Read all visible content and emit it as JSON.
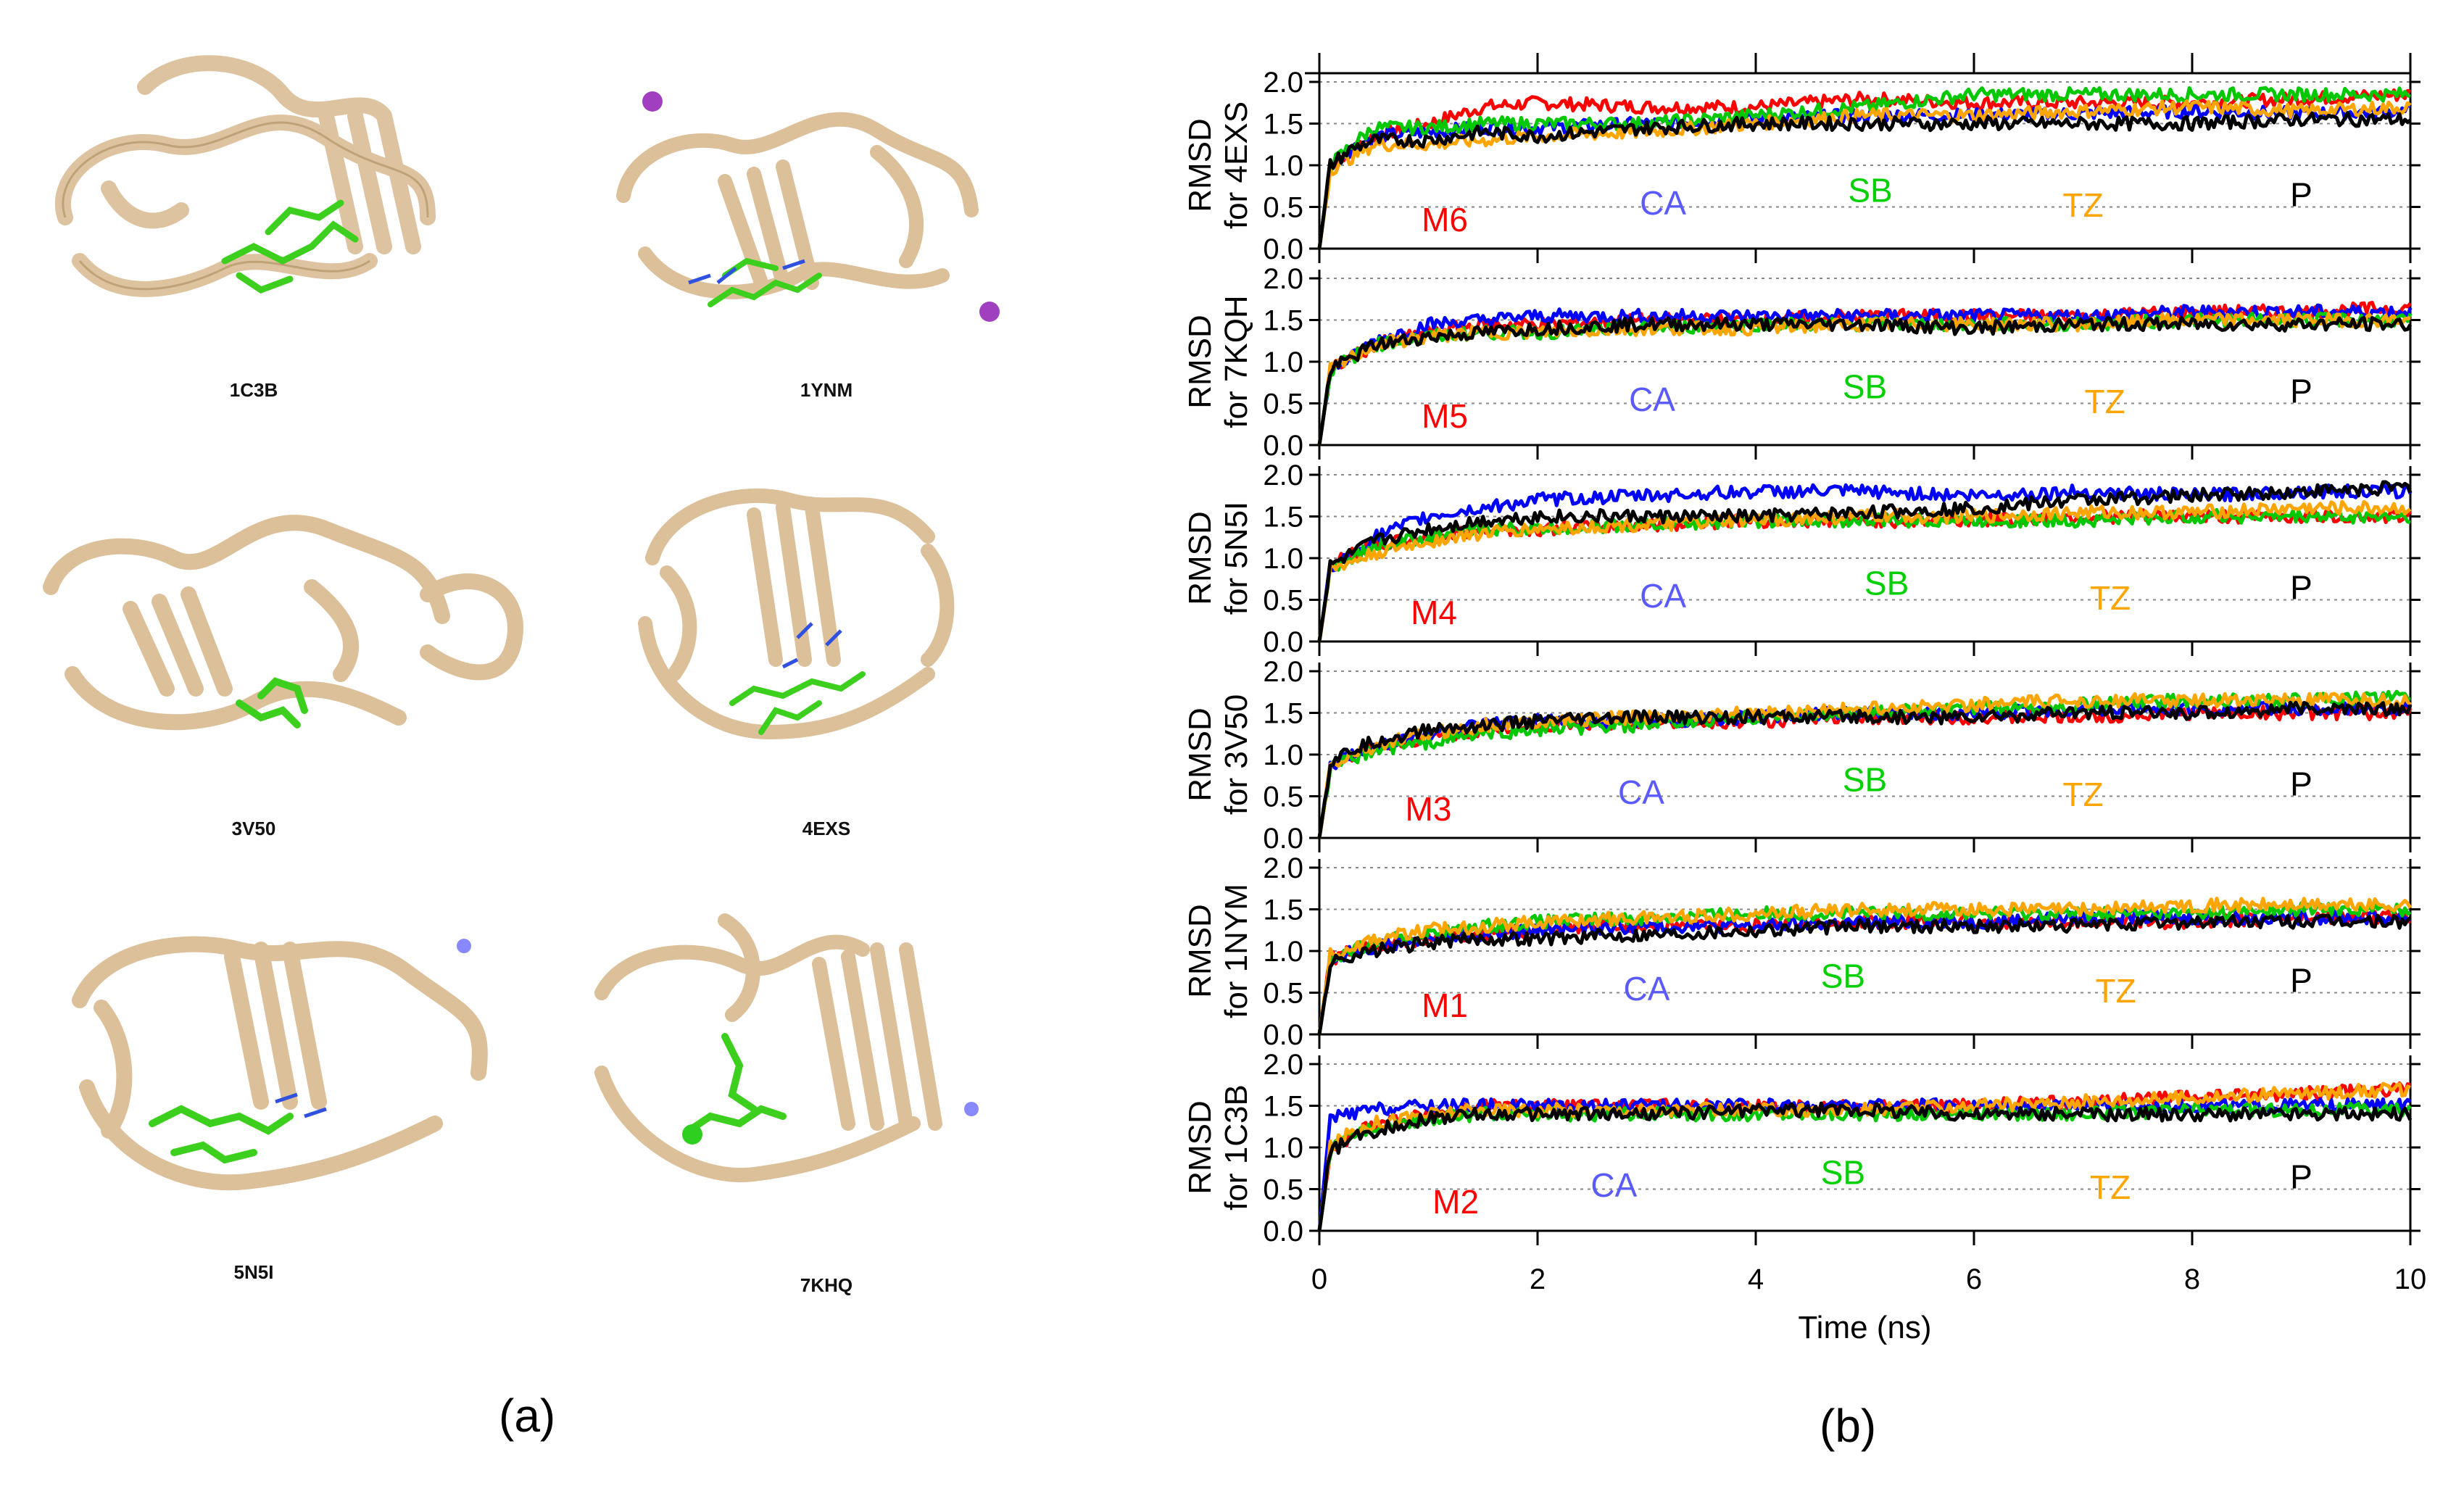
{
  "panel_labels": {
    "a": "(a)",
    "b": "(b)"
  },
  "structures": [
    {
      "id": "1C3B"
    },
    {
      "id": "1YNM"
    },
    {
      "id": "3V50"
    },
    {
      "id": "4EXS"
    },
    {
      "id": "5N5I"
    },
    {
      "id": "7KHQ"
    }
  ],
  "colors": {
    "M": "#ff0000",
    "CA": "#0000ff",
    "SB": "#00c800",
    "TZ": "#ffa500",
    "P": "#000000",
    "protein": "#dcc09a",
    "ligand": "#3ccf1e"
  },
  "chart_data": {
    "type": "line",
    "xlabel": "Time (ns)",
    "xlim": [
      0,
      10
    ],
    "x_ticks": [
      "0",
      "2",
      "4",
      "6",
      "8",
      "10"
    ],
    "ylim": [
      0,
      2
    ],
    "y_ticks": [
      "0.0",
      "0.5",
      "1.0",
      "1.5",
      "2.0"
    ],
    "grid": "dotted horizontal",
    "series_names": [
      "CA",
      "SB",
      "TZ",
      "P"
    ],
    "series_label_colors": {
      "M": "#ff0000",
      "CA": "#5a5aff",
      "SB": "#00d000",
      "TZ": "#ffa500",
      "P": "#000000"
    },
    "panels": [
      {
        "ylabel_1": "RMSD",
        "ylabel_2": "for 4EXS",
        "mol_label": "M6",
        "x": [
          0,
          0.1,
          0.3,
          0.5,
          1,
          1.5,
          2,
          3,
          4,
          5,
          6,
          7,
          8,
          9,
          10
        ],
        "series": [
          {
            "name": "M6",
            "values": [
              0,
              1.0,
              1.2,
              1.35,
              1.5,
              1.7,
              1.75,
              1.7,
              1.7,
              1.8,
              1.75,
              1.75,
              1.75,
              1.8,
              1.85
            ]
          },
          {
            "name": "CA",
            "values": [
              0,
              1.0,
              1.2,
              1.35,
              1.4,
              1.45,
              1.45,
              1.5,
              1.55,
              1.6,
              1.6,
              1.62,
              1.65,
              1.62,
              1.65
            ]
          },
          {
            "name": "SB",
            "values": [
              0,
              1.0,
              1.25,
              1.45,
              1.45,
              1.5,
              1.5,
              1.5,
              1.6,
              1.7,
              1.85,
              1.85,
              1.85,
              1.85,
              1.85
            ]
          },
          {
            "name": "TZ",
            "values": [
              0,
              0.95,
              1.1,
              1.25,
              1.25,
              1.3,
              1.35,
              1.4,
              1.5,
              1.6,
              1.6,
              1.65,
              1.7,
              1.65,
              1.7
            ]
          },
          {
            "name": "P",
            "values": [
              0,
              1.0,
              1.2,
              1.3,
              1.3,
              1.4,
              1.35,
              1.45,
              1.5,
              1.5,
              1.5,
              1.5,
              1.5,
              1.55,
              1.55
            ]
          }
        ]
      },
      {
        "ylabel_1": "RMSD",
        "ylabel_2": "for 7KQH",
        "mol_label": "M5",
        "x": [
          0,
          0.1,
          0.3,
          0.5,
          1,
          1.5,
          2,
          3,
          4,
          5,
          6,
          7,
          8,
          9,
          10
        ],
        "series": [
          {
            "name": "M5",
            "values": [
              0,
              0.9,
              1.05,
              1.2,
              1.35,
              1.45,
              1.45,
              1.5,
              1.5,
              1.55,
              1.55,
              1.55,
              1.6,
              1.6,
              1.65
            ]
          },
          {
            "name": "CA",
            "values": [
              0,
              0.9,
              1.05,
              1.25,
              1.45,
              1.5,
              1.55,
              1.55,
              1.55,
              1.55,
              1.55,
              1.55,
              1.6,
              1.6,
              1.6
            ]
          },
          {
            "name": "SB",
            "values": [
              0,
              0.9,
              1.05,
              1.2,
              1.3,
              1.35,
              1.35,
              1.4,
              1.45,
              1.45,
              1.45,
              1.45,
              1.5,
              1.5,
              1.5
            ]
          },
          {
            "name": "TZ",
            "values": [
              0,
              0.9,
              1.05,
              1.2,
              1.3,
              1.35,
              1.35,
              1.4,
              1.4,
              1.45,
              1.45,
              1.45,
              1.5,
              1.5,
              1.5
            ]
          },
          {
            "name": "P",
            "values": [
              0,
              0.9,
              1.05,
              1.2,
              1.3,
              1.35,
              1.4,
              1.45,
              1.45,
              1.45,
              1.4,
              1.45,
              1.45,
              1.45,
              1.45
            ]
          }
        ]
      },
      {
        "ylabel_1": "RMSD",
        "ylabel_2": "for 5N5I",
        "mol_label": "M4",
        "x": [
          0,
          0.1,
          0.3,
          0.5,
          1,
          1.5,
          2,
          3,
          4,
          5,
          6,
          7,
          8,
          9,
          10
        ],
        "series": [
          {
            "name": "M4",
            "values": [
              0,
              0.9,
              1.05,
              1.15,
              1.25,
              1.35,
              1.35,
              1.4,
              1.45,
              1.45,
              1.45,
              1.5,
              1.5,
              1.5,
              1.5
            ]
          },
          {
            "name": "CA",
            "values": [
              0,
              0.9,
              1.05,
              1.25,
              1.5,
              1.6,
              1.7,
              1.75,
              1.8,
              1.8,
              1.75,
              1.8,
              1.75,
              1.8,
              1.8
            ]
          },
          {
            "name": "SB",
            "values": [
              0,
              0.9,
              1.0,
              1.15,
              1.25,
              1.35,
              1.35,
              1.4,
              1.45,
              1.45,
              1.45,
              1.45,
              1.5,
              1.5,
              1.5
            ]
          },
          {
            "name": "TZ",
            "values": [
              0,
              0.85,
              0.95,
              1.05,
              1.2,
              1.3,
              1.35,
              1.4,
              1.45,
              1.5,
              1.5,
              1.55,
              1.55,
              1.6,
              1.6
            ]
          },
          {
            "name": "P",
            "values": [
              0,
              0.9,
              1.05,
              1.2,
              1.35,
              1.45,
              1.5,
              1.5,
              1.5,
              1.55,
              1.6,
              1.7,
              1.75,
              1.8,
              1.85
            ]
          }
        ]
      },
      {
        "ylabel_1": "RMSD",
        "ylabel_2": "for 3V50",
        "mol_label": "M3",
        "x": [
          0,
          0.1,
          0.3,
          0.5,
          1,
          1.5,
          2,
          3,
          4,
          5,
          6,
          7,
          8,
          9,
          10
        ],
        "series": [
          {
            "name": "M3",
            "values": [
              0,
              0.85,
              1.0,
              1.1,
              1.2,
              1.3,
              1.35,
              1.4,
              1.4,
              1.45,
              1.45,
              1.45,
              1.5,
              1.5,
              1.5
            ]
          },
          {
            "name": "CA",
            "values": [
              0,
              0.85,
              1.0,
              1.1,
              1.25,
              1.35,
              1.4,
              1.4,
              1.45,
              1.5,
              1.5,
              1.55,
              1.55,
              1.55,
              1.55
            ]
          },
          {
            "name": "SB",
            "values": [
              0,
              0.85,
              0.95,
              1.05,
              1.15,
              1.25,
              1.3,
              1.35,
              1.45,
              1.5,
              1.55,
              1.6,
              1.65,
              1.65,
              1.7
            ]
          },
          {
            "name": "TZ",
            "values": [
              0,
              0.85,
              1.0,
              1.1,
              1.25,
              1.35,
              1.4,
              1.45,
              1.5,
              1.55,
              1.6,
              1.65,
              1.65,
              1.65,
              1.65
            ]
          },
          {
            "name": "P",
            "values": [
              0,
              0.9,
              1.05,
              1.15,
              1.3,
              1.35,
              1.4,
              1.45,
              1.45,
              1.45,
              1.45,
              1.5,
              1.5,
              1.55,
              1.55
            ]
          }
        ]
      },
      {
        "ylabel_1": "RMSD",
        "ylabel_2": "for 1NYM",
        "mol_label": "M1",
        "x": [
          0,
          0.1,
          0.3,
          0.5,
          1,
          1.5,
          2,
          3,
          4,
          5,
          6,
          7,
          8,
          9,
          10
        ],
        "series": [
          {
            "name": "M1",
            "values": [
              0,
              0.9,
              1.0,
              1.05,
              1.15,
              1.2,
              1.25,
              1.3,
              1.3,
              1.35,
              1.35,
              1.35,
              1.35,
              1.4,
              1.4
            ]
          },
          {
            "name": "CA",
            "values": [
              0,
              0.9,
              1.0,
              1.05,
              1.15,
              1.2,
              1.25,
              1.3,
              1.3,
              1.35,
              1.35,
              1.4,
              1.4,
              1.4,
              1.4
            ]
          },
          {
            "name": "SB",
            "values": [
              0,
              0.9,
              1.0,
              1.1,
              1.2,
              1.3,
              1.35,
              1.4,
              1.45,
              1.45,
              1.45,
              1.45,
              1.45,
              1.5,
              1.5
            ]
          },
          {
            "name": "TZ",
            "values": [
              0,
              0.95,
              1.05,
              1.15,
              1.25,
              1.3,
              1.35,
              1.4,
              1.45,
              1.5,
              1.5,
              1.5,
              1.55,
              1.55,
              1.55
            ]
          },
          {
            "name": "P",
            "values": [
              0,
              0.85,
              0.95,
              1.0,
              1.1,
              1.15,
              1.15,
              1.2,
              1.25,
              1.3,
              1.3,
              1.3,
              1.35,
              1.35,
              1.35
            ]
          }
        ]
      },
      {
        "ylabel_1": "RMSD",
        "ylabel_2": "for 1C3B",
        "mol_label": "M2",
        "x": [
          0,
          0.1,
          0.3,
          0.5,
          1,
          1.5,
          2,
          3,
          4,
          5,
          6,
          7,
          8,
          9,
          10
        ],
        "series": [
          {
            "name": "M2",
            "values": [
              0,
              0.95,
              1.15,
              1.3,
              1.4,
              1.5,
              1.5,
              1.5,
              1.5,
              1.5,
              1.5,
              1.55,
              1.6,
              1.65,
              1.7
            ]
          },
          {
            "name": "CA",
            "values": [
              0,
              1.35,
              1.4,
              1.45,
              1.5,
              1.5,
              1.5,
              1.5,
              1.5,
              1.5,
              1.5,
              1.5,
              1.5,
              1.5,
              1.5
            ]
          },
          {
            "name": "SB",
            "values": [
              0,
              0.95,
              1.15,
              1.25,
              1.35,
              1.4,
              1.4,
              1.4,
              1.4,
              1.4,
              1.4,
              1.4,
              1.45,
              1.45,
              1.45
            ]
          },
          {
            "name": "TZ",
            "values": [
              0,
              1.0,
              1.2,
              1.3,
              1.4,
              1.45,
              1.45,
              1.45,
              1.45,
              1.45,
              1.5,
              1.55,
              1.6,
              1.65,
              1.7
            ]
          },
          {
            "name": "P",
            "values": [
              0,
              0.95,
              1.1,
              1.2,
              1.35,
              1.4,
              1.4,
              1.4,
              1.45,
              1.45,
              1.4,
              1.4,
              1.4,
              1.4,
              1.4
            ]
          }
        ]
      }
    ]
  }
}
